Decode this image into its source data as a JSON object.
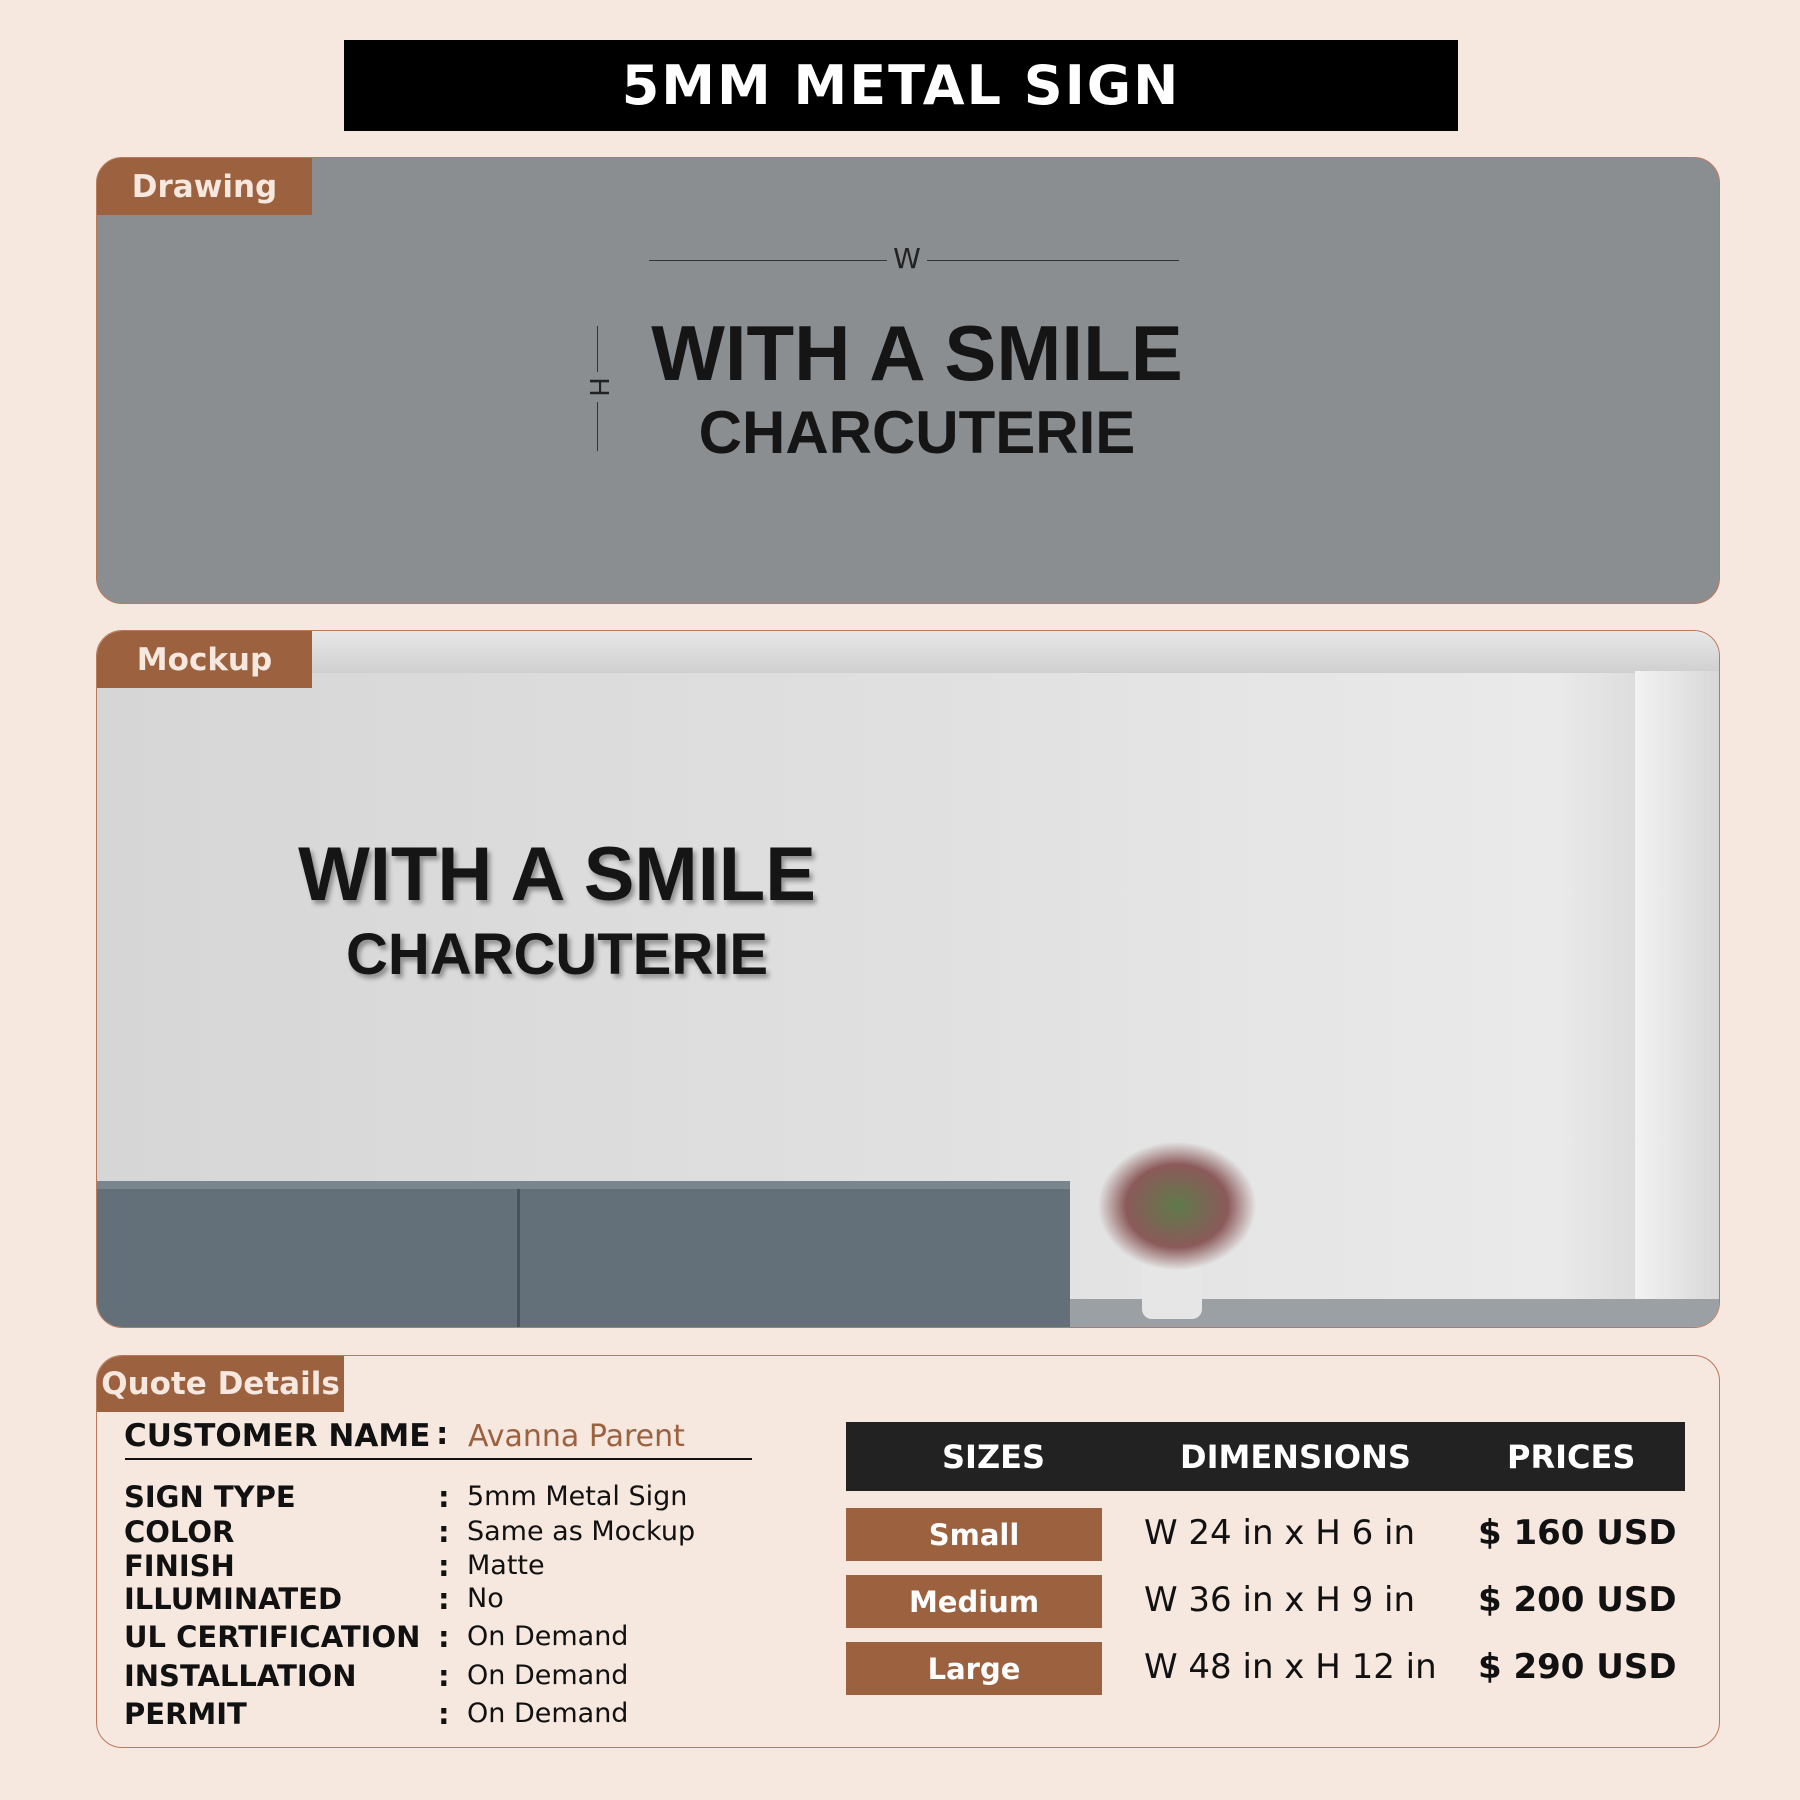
{
  "title": "5MM METAL SIGN",
  "drawing": {
    "tab": "Drawing",
    "w_label": "W",
    "h_label": "H",
    "line1": "WITH A SMILE",
    "line2": "CHARCUTERIE"
  },
  "mockup": {
    "tab": "Mockup",
    "line1": "WITH A SMILE",
    "line2": "CHARCUTERIE"
  },
  "quote": {
    "tab": "Quote Details",
    "customer_label": "CUSTOMER NAME",
    "customer_name": "Avanna Parent",
    "fields": [
      {
        "label": "SIGN TYPE",
        "value": "5mm Metal Sign"
      },
      {
        "label": "COLOR",
        "value": "Same as Mockup"
      },
      {
        "label": "FINISH",
        "value": "Matte"
      },
      {
        "label": "ILLUMINATED",
        "value": "No"
      },
      {
        "label": "UL CERTIFICATION",
        "value": "On Demand"
      },
      {
        "label": "INSTALLATION",
        "value": "On Demand"
      },
      {
        "label": "PERMIT",
        "value": "On Demand"
      }
    ],
    "table": {
      "headers": [
        "SIZES",
        "DIMENSIONS",
        "PRICES"
      ],
      "rows": [
        {
          "size": "Small",
          "dimensions": "W 24 in x H 6 in",
          "price": "$ 160 USD"
        },
        {
          "size": "Medium",
          "dimensions": "W 36 in x H 9 in",
          "price": "$ 200 USD"
        },
        {
          "size": "Large",
          "dimensions": "W 48 in x H 12 in",
          "price": "$ 290 USD"
        }
      ]
    }
  },
  "colors": {
    "accent": "#9c6240",
    "background": "#f6e7df",
    "customer_name": "#9c6240"
  }
}
